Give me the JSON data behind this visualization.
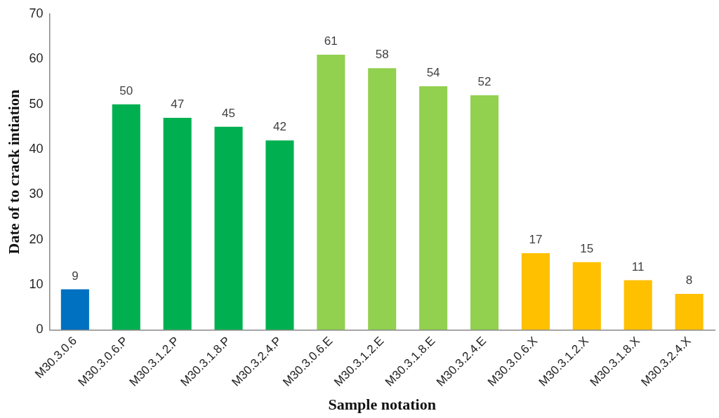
{
  "chart_data": {
    "type": "bar",
    "xlabel": "Sample notation",
    "ylabel": "Date of to crack intiation",
    "categories": [
      "M30.3.0.6",
      "M30.3.0.6.P",
      "M30.3.1.2.P",
      "M30.3.1.8.P",
      "M30.3.2.4.P",
      "M30.3.0.6.E",
      "M30.3.1.2.E",
      "M30.3.1.8.E",
      "M30.3.2.4.E",
      "M30.3.0.6.X",
      "M30.3.1.2.X",
      "M30.3.1.8.X",
      "M30.3.2.4.X"
    ],
    "values": [
      9,
      50,
      47,
      45,
      42,
      61,
      58,
      54,
      52,
      17,
      15,
      11,
      8
    ],
    "colors": [
      "#0070c0",
      "#00b050",
      "#00b050",
      "#00b050",
      "#00b050",
      "#92d050",
      "#92d050",
      "#92d050",
      "#92d050",
      "#ffc000",
      "#ffc000",
      "#ffc000",
      "#ffc000"
    ],
    "ylim": [
      0,
      70
    ],
    "yticks": [
      0,
      10,
      20,
      30,
      40,
      50,
      60,
      70
    ],
    "grid": false,
    "legend": false,
    "data_labels": true
  }
}
